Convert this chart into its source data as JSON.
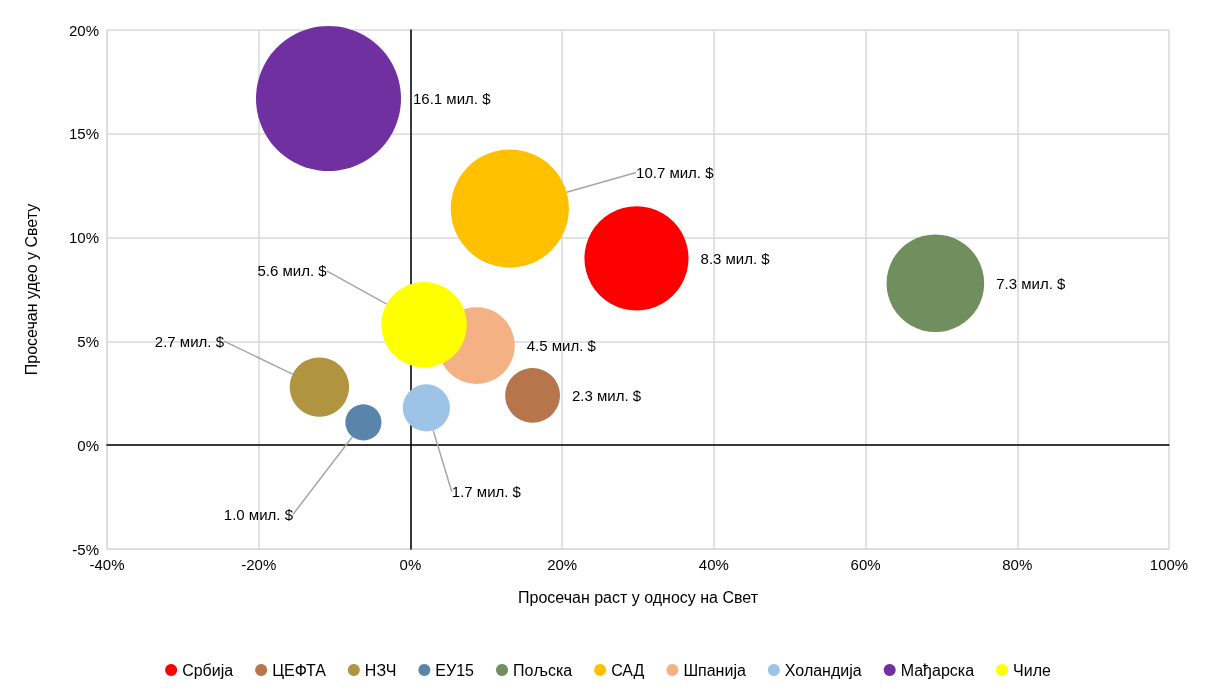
{
  "chart_data": {
    "type": "bubble",
    "xlabel": "Просечан раст у односу на Свет",
    "ylabel": "Просечан удео у Свету",
    "xlim": [
      -40,
      100
    ],
    "xticks": [
      {
        "value": -40,
        "label": "-40%"
      },
      {
        "value": -20,
        "label": "-20%"
      },
      {
        "value": 0,
        "label": "0%"
      },
      {
        "value": 20,
        "label": "20%"
      },
      {
        "value": 40,
        "label": "40%"
      },
      {
        "value": 60,
        "label": "60%"
      },
      {
        "value": 80,
        "label": "80%"
      },
      {
        "value": 100,
        "label": "100%"
      }
    ],
    "ylim": [
      -5,
      20
    ],
    "yticks": [
      {
        "value": -5,
        "label": "-5%"
      },
      {
        "value": 0,
        "label": "0%"
      },
      {
        "value": 5,
        "label": "5%"
      },
      {
        "value": 10,
        "label": "10%"
      },
      {
        "value": 15,
        "label": "15%"
      },
      {
        "value": 20,
        "label": "20%"
      }
    ],
    "grid": true,
    "legend": "bottom",
    "series": [
      {
        "name": "Србија",
        "color": "#ff0000",
        "x": [
          29.8
        ],
        "values": [
          9.0
        ],
        "sizes": [
          8.3
        ],
        "value_labels": [
          "8.3 мил. $"
        ]
      },
      {
        "name": "ЦЕФТА",
        "color": "#b7754b",
        "x": [
          16.1
        ],
        "values": [
          2.4
        ],
        "sizes": [
          2.3
        ],
        "value_labels": [
          "2.3 мил. $"
        ]
      },
      {
        "name": "НЗЧ",
        "color": "#b09440",
        "x": [
          -12.0
        ],
        "values": [
          2.8
        ],
        "sizes": [
          2.7
        ],
        "value_labels": [
          "2.7 мил. $"
        ]
      },
      {
        "name": "ЕУ15",
        "color": "#5a85ab",
        "x": [
          -6.2
        ],
        "values": [
          1.1
        ],
        "sizes": [
          1.0
        ],
        "value_labels": [
          "1.0 мил. $"
        ]
      },
      {
        "name": "Пољска",
        "color": "#718e5f",
        "x": [
          69.2
        ],
        "values": [
          7.8
        ],
        "sizes": [
          7.3
        ],
        "value_labels": [
          "7.3 мил. $"
        ]
      },
      {
        "name": "САД",
        "color": "#ffc000",
        "x": [
          13.1
        ],
        "values": [
          11.4
        ],
        "sizes": [
          10.7
        ],
        "value_labels": [
          "10.7 мил. $"
        ]
      },
      {
        "name": "Шпанија",
        "color": "#f4b183",
        "x": [
          8.7
        ],
        "values": [
          4.8
        ],
        "sizes": [
          4.5
        ],
        "value_labels": [
          "4.5 мил. $"
        ]
      },
      {
        "name": "Холандија",
        "color": "#9dc3e6",
        "x": [
          2.1
        ],
        "values": [
          1.8
        ],
        "sizes": [
          1.7
        ],
        "value_labels": [
          "1.7 мил. $"
        ]
      },
      {
        "name": "Мађарска",
        "color": "#7030a0",
        "x": [
          -10.8
        ],
        "values": [
          16.7
        ],
        "sizes": [
          16.1
        ],
        "value_labels": [
          "16.1 мил. $"
        ]
      },
      {
        "name": "Чиле",
        "color": "#ffff00",
        "x": [
          1.8
        ],
        "values": [
          5.8
        ],
        "sizes": [
          5.6
        ],
        "value_labels": [
          "5.6 мил. $"
        ]
      }
    ]
  }
}
